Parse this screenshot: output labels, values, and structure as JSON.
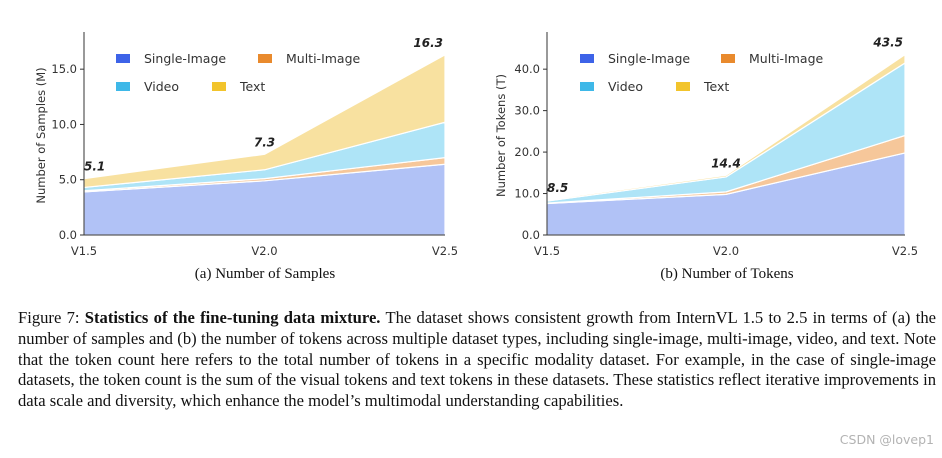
{
  "chart_data": [
    {
      "id": "a",
      "type": "area",
      "stacked": true,
      "title": "",
      "xlabel": "",
      "ylabel": "Number of Samples (M)",
      "categories": [
        "V1.5",
        "V2.0",
        "V2.5"
      ],
      "ylim": [
        0,
        18
      ],
      "yticks": [
        "0.0",
        "5.0",
        "10.0",
        "15.0"
      ],
      "series": [
        {
          "name": "Single-Image",
          "color": "#3D63E8",
          "values": [
            3.9,
            4.9,
            6.4
          ]
        },
        {
          "name": "Multi-Image",
          "color": "#E98A2D",
          "values": [
            0.1,
            0.2,
            0.6
          ]
        },
        {
          "name": "Video",
          "color": "#3EB8E8",
          "values": [
            0.3,
            0.8,
            3.2
          ]
        },
        {
          "name": "Text",
          "color": "#F2C42C",
          "values": [
            0.8,
            1.4,
            6.1
          ]
        }
      ],
      "totals": [
        "5.1",
        "7.3",
        "16.3"
      ],
      "legend": "top-left",
      "grid": false
    },
    {
      "id": "b",
      "type": "area",
      "stacked": true,
      "title": "",
      "xlabel": "",
      "ylabel": "Number of Tokens (T)",
      "categories": [
        "V1.5",
        "V2.0",
        "V2.5"
      ],
      "ylim": [
        0,
        48
      ],
      "yticks": [
        "0.0",
        "10.0",
        "20.0",
        "30.0",
        "40.0"
      ],
      "series": [
        {
          "name": "Single-Image",
          "color": "#3D63E8",
          "values": [
            7.6,
            9.8,
            19.8
          ]
        },
        {
          "name": "Multi-Image",
          "color": "#E98A2D",
          "values": [
            0.1,
            0.6,
            4.2
          ]
        },
        {
          "name": "Video",
          "color": "#3EB8E8",
          "values": [
            0.5,
            3.6,
            17.5
          ]
        },
        {
          "name": "Text",
          "color": "#F2C42C",
          "values": [
            0.3,
            0.4,
            2.0
          ]
        }
      ],
      "totals": [
        "8.5",
        "14.4",
        "43.5"
      ],
      "legend": "top-left",
      "grid": false
    }
  ],
  "subcaptions": {
    "a": "(a) Number of Samples",
    "b": "(b) Number of Tokens"
  },
  "caption": {
    "label": "Figure 7: ",
    "title": "Statistics of the fine-tuning data mixture.",
    "body": " The dataset shows consistent growth from InternVL 1.5 to 2.5 in terms of (a) the number of samples and (b) the number of tokens across multiple dataset types, including single-image, multi-image, video, and text. Note that the token count here refers to the total number of tokens in a specific modality dataset. For example, in the case of single-image datasets, the token count is the sum of the visual tokens and text tokens in these datasets. These statistics reflect iterative improvements in data scale and diversity, which enhance the model’s multimodal understanding capabilities."
  },
  "watermark": "CSDN @lovep1"
}
